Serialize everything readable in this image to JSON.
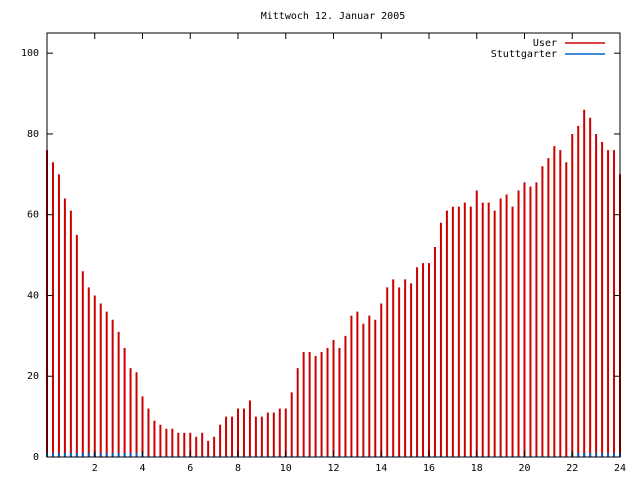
{
  "chart_data": {
    "type": "impulses",
    "title": "Mittwoch 12. Januar 2005",
    "x": [
      0,
      0.25,
      0.5,
      0.75,
      1,
      1.25,
      1.5,
      1.75,
      2,
      2.25,
      2.5,
      2.75,
      3,
      3.25,
      3.5,
      3.75,
      4,
      4.25,
      4.5,
      4.75,
      5,
      5.25,
      5.5,
      5.75,
      6,
      6.25,
      6.5,
      6.75,
      7,
      7.25,
      7.5,
      7.75,
      8,
      8.25,
      8.5,
      8.75,
      9,
      9.25,
      9.5,
      9.75,
      10,
      10.25,
      10.5,
      10.75,
      11,
      11.25,
      11.5,
      11.75,
      12,
      12.25,
      12.5,
      12.75,
      13,
      13.25,
      13.5,
      13.75,
      14,
      14.25,
      14.5,
      14.75,
      15,
      15.25,
      15.5,
      15.75,
      16,
      16.25,
      16.5,
      16.75,
      17,
      17.25,
      17.5,
      17.75,
      18,
      18.25,
      18.5,
      18.75,
      19,
      19.25,
      19.5,
      19.75,
      20,
      20.25,
      20.5,
      20.75,
      21,
      21.25,
      21.5,
      21.75,
      22,
      22.25,
      22.5,
      22.75,
      23,
      23.25,
      23.5,
      23.75,
      24
    ],
    "series": [
      {
        "name": "User",
        "color": "#cc0000",
        "values": [
          76,
          73,
          70,
          64,
          61,
          55,
          46,
          42,
          40,
          38,
          36,
          34,
          31,
          27,
          22,
          21,
          15,
          12,
          9,
          8,
          7,
          7,
          6,
          6,
          6,
          5,
          6,
          4,
          5,
          8,
          10,
          10,
          12,
          12,
          14,
          10,
          10,
          11,
          11,
          12,
          12,
          16,
          22,
          26,
          26,
          25,
          26,
          27,
          29,
          27,
          30,
          35,
          36,
          33,
          35,
          34,
          38,
          42,
          44,
          42,
          44,
          43,
          47,
          48,
          48,
          52,
          58,
          61,
          62,
          62,
          63,
          62,
          66,
          63,
          63,
          61,
          64,
          65,
          62,
          66,
          68,
          67,
          68,
          72,
          74,
          77,
          76,
          73,
          80,
          82,
          86,
          84,
          80,
          78,
          76,
          76,
          70
        ]
      },
      {
        "name": "Stuttgarter",
        "color": "#0066cc",
        "values": [
          1,
          1,
          1,
          1,
          1,
          1,
          1,
          1,
          1,
          1,
          1,
          1,
          1,
          1,
          1,
          1,
          1,
          0,
          0,
          0,
          0,
          0,
          0,
          0,
          0,
          0,
          0,
          0,
          0,
          0,
          0,
          0,
          0,
          0,
          0,
          0,
          0,
          0,
          0,
          0,
          0,
          0,
          0,
          0,
          0,
          0,
          0,
          0,
          0,
          0,
          0,
          0,
          0,
          0,
          0,
          0,
          0,
          0,
          0,
          0,
          0,
          0,
          0,
          0,
          0,
          0,
          0,
          0,
          0,
          0,
          0,
          0,
          0,
          0,
          0,
          0,
          0,
          0,
          0,
          0,
          0,
          0,
          0,
          0,
          0,
          0,
          0,
          0,
          1,
          1,
          1,
          1,
          1,
          1,
          1,
          1,
          1
        ]
      }
    ],
    "xlim": [
      0,
      24
    ],
    "xticks": [
      2,
      4,
      6,
      8,
      10,
      12,
      14,
      16,
      18,
      20,
      22,
      24
    ],
    "ylim": [
      0,
      105
    ],
    "yticks": [
      0,
      20,
      40,
      60,
      80,
      100
    ],
    "legend": "top-right"
  }
}
